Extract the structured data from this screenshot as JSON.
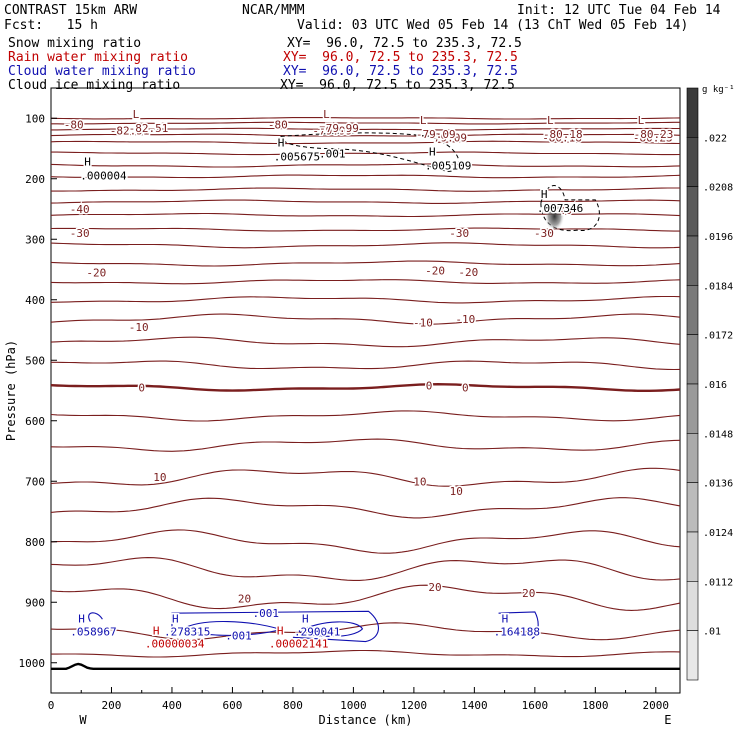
{
  "header": {
    "title_left": "CONTRAST 15km ARW",
    "title_center": "NCAR/MMM",
    "init": "Init: 12 UTC Tue 04 Feb 14",
    "fcst": "Fcst:   15 h",
    "valid": "Valid: 03 UTC Wed 05 Feb 14 (13 ChT Wed 05 Feb 14)",
    "fields": [
      {
        "name": "Snow mixing ratio",
        "xy": "XY=  96.0, 72.5 to 235.3, 72.5",
        "color": "#000000"
      },
      {
        "name": "Rain water mixing ratio",
        "xy": "XY=  96.0, 72.5 to 235.3, 72.5",
        "color": "#c00000"
      },
      {
        "name": "Cloud water mixing ratio",
        "xy": "XY=  96.0, 72.5 to 235.3, 72.5",
        "color": "#1010b0"
      },
      {
        "name": "Cloud ice mixing ratio",
        "xy": "XY=  96.0, 72.5 to 235.3, 72.5",
        "color": "#000000"
      }
    ]
  },
  "chart_data": {
    "type": "contour-cross-section",
    "xlabel": "Distance (km)",
    "ylabel": "Pressure (hPa)",
    "xlim": [
      0,
      2080
    ],
    "ylim": [
      50,
      1050
    ],
    "x_ticks": [
      0,
      200,
      400,
      600,
      800,
      1000,
      1200,
      1400,
      1600,
      1800,
      2000
    ],
    "y_ticks": [
      100,
      200,
      300,
      400,
      500,
      600,
      700,
      800,
      900,
      1000
    ],
    "x_endpoints": {
      "west": "W",
      "east": "E"
    },
    "colorbar": {
      "unit": "g kg⁻¹",
      "labels": [
        ".022",
        ".0208",
        ".0196",
        ".0184",
        ".0172",
        ".016",
        ".0148",
        ".0136",
        ".0124",
        ".0112",
        ".01"
      ],
      "colors": [
        "#3a3a3a",
        "#4a4a4a",
        "#5a5a5a",
        "#6a6a6a",
        "#7a7a7a",
        "#8a8a8a",
        "#9a9a9a",
        "#aaaaaa",
        "#bbbbbb",
        "#cccccc",
        "#dddddd",
        "#e8e8e8"
      ]
    },
    "temperature_labels": [
      {
        "text": "-80",
        "x": 75,
        "p": 110
      },
      {
        "text": "-80",
        "x": 750,
        "p": 110
      },
      {
        "text": "-82.51",
        "x": 260,
        "p": 120
      },
      {
        "text": "-79.99",
        "x": 930,
        "p": 120
      },
      {
        "text": "-79.09",
        "x": 1310,
        "p": 132
      },
      {
        "text": "-80.18",
        "x": 1690,
        "p": 132
      },
      {
        "text": "-80.23",
        "x": 1990,
        "p": 132
      },
      {
        "text": "-40",
        "x": 95,
        "p": 250
      },
      {
        "text": "-40",
        "x": 1690,
        "p": 252
      },
      {
        "text": "-30",
        "x": 95,
        "p": 290
      },
      {
        "text": "-30",
        "x": 1350,
        "p": 290
      },
      {
        "text": "-30",
        "x": 1630,
        "p": 290
      },
      {
        "text": "-20",
        "x": 150,
        "p": 355
      },
      {
        "text": "-20",
        "x": 1270,
        "p": 352
      },
      {
        "text": "-20",
        "x": 1380,
        "p": 354
      },
      {
        "text": "-10",
        "x": 290,
        "p": 445
      },
      {
        "text": "-10",
        "x": 1230,
        "p": 438
      },
      {
        "text": "-10",
        "x": 1370,
        "p": 432
      },
      {
        "text": "0",
        "x": 300,
        "p": 545
      },
      {
        "text": "0",
        "x": 1250,
        "p": 542
      },
      {
        "text": "0",
        "x": 1370,
        "p": 545
      },
      {
        "text": "10",
        "x": 360,
        "p": 693
      },
      {
        "text": "10",
        "x": 1220,
        "p": 700
      },
      {
        "text": "10",
        "x": 1340,
        "p": 716
      },
      {
        "text": "20",
        "x": 640,
        "p": 894
      },
      {
        "text": "20",
        "x": 1270,
        "p": 875
      },
      {
        "text": "20",
        "x": 1580,
        "p": 885
      }
    ],
    "extrema": [
      {
        "kind": "L",
        "value": "-82.51",
        "x": 270,
        "p": 108
      },
      {
        "kind": "L",
        "value": "-79.99",
        "x": 900,
        "p": 108
      },
      {
        "kind": "L",
        "value": "-79.09",
        "x": 1220,
        "p": 118
      },
      {
        "kind": "L",
        "value": "-80.18",
        "x": 1640,
        "p": 118
      },
      {
        "kind": "L",
        "value": "-80.23",
        "x": 1940,
        "p": 118
      },
      {
        "kind": "H",
        "value": ".005675",
        "x": 750,
        "p": 155
      },
      {
        "kind": "H",
        "value": ".005109",
        "x": 1250,
        "p": 170
      },
      {
        "kind": "H",
        "value": ".000004",
        "x": 110,
        "p": 186
      },
      {
        "kind": "H",
        "value": ".007346",
        "x": 1620,
        "p": 240
      }
    ],
    "snow_labels": [
      {
        "text": ".001",
        "x": 930,
        "p": 158
      }
    ],
    "cloud_water_extrema": [
      {
        "kind": "H",
        "value": ".058967",
        "x": 90,
        "p": 940
      },
      {
        "kind": "H",
        "value": ".278315",
        "x": 400,
        "p": 940
      },
      {
        "kind": "H",
        "value": ".290041",
        "x": 830,
        "p": 940
      },
      {
        "kind": "H",
        "value": ".164188",
        "x": 1490,
        "p": 940
      }
    ],
    "cloud_water_labels": [
      {
        "text": ".001",
        "x": 710,
        "p": 918
      },
      {
        "text": ".001",
        "x": 620,
        "p": 955
      }
    ],
    "rain_extrema": [
      {
        "kind": "H",
        "value": ".00000034",
        "x": 370,
        "p": 960
      },
      {
        "kind": "H",
        "value": ".00002141",
        "x": 780,
        "p": 960
      }
    ]
  }
}
